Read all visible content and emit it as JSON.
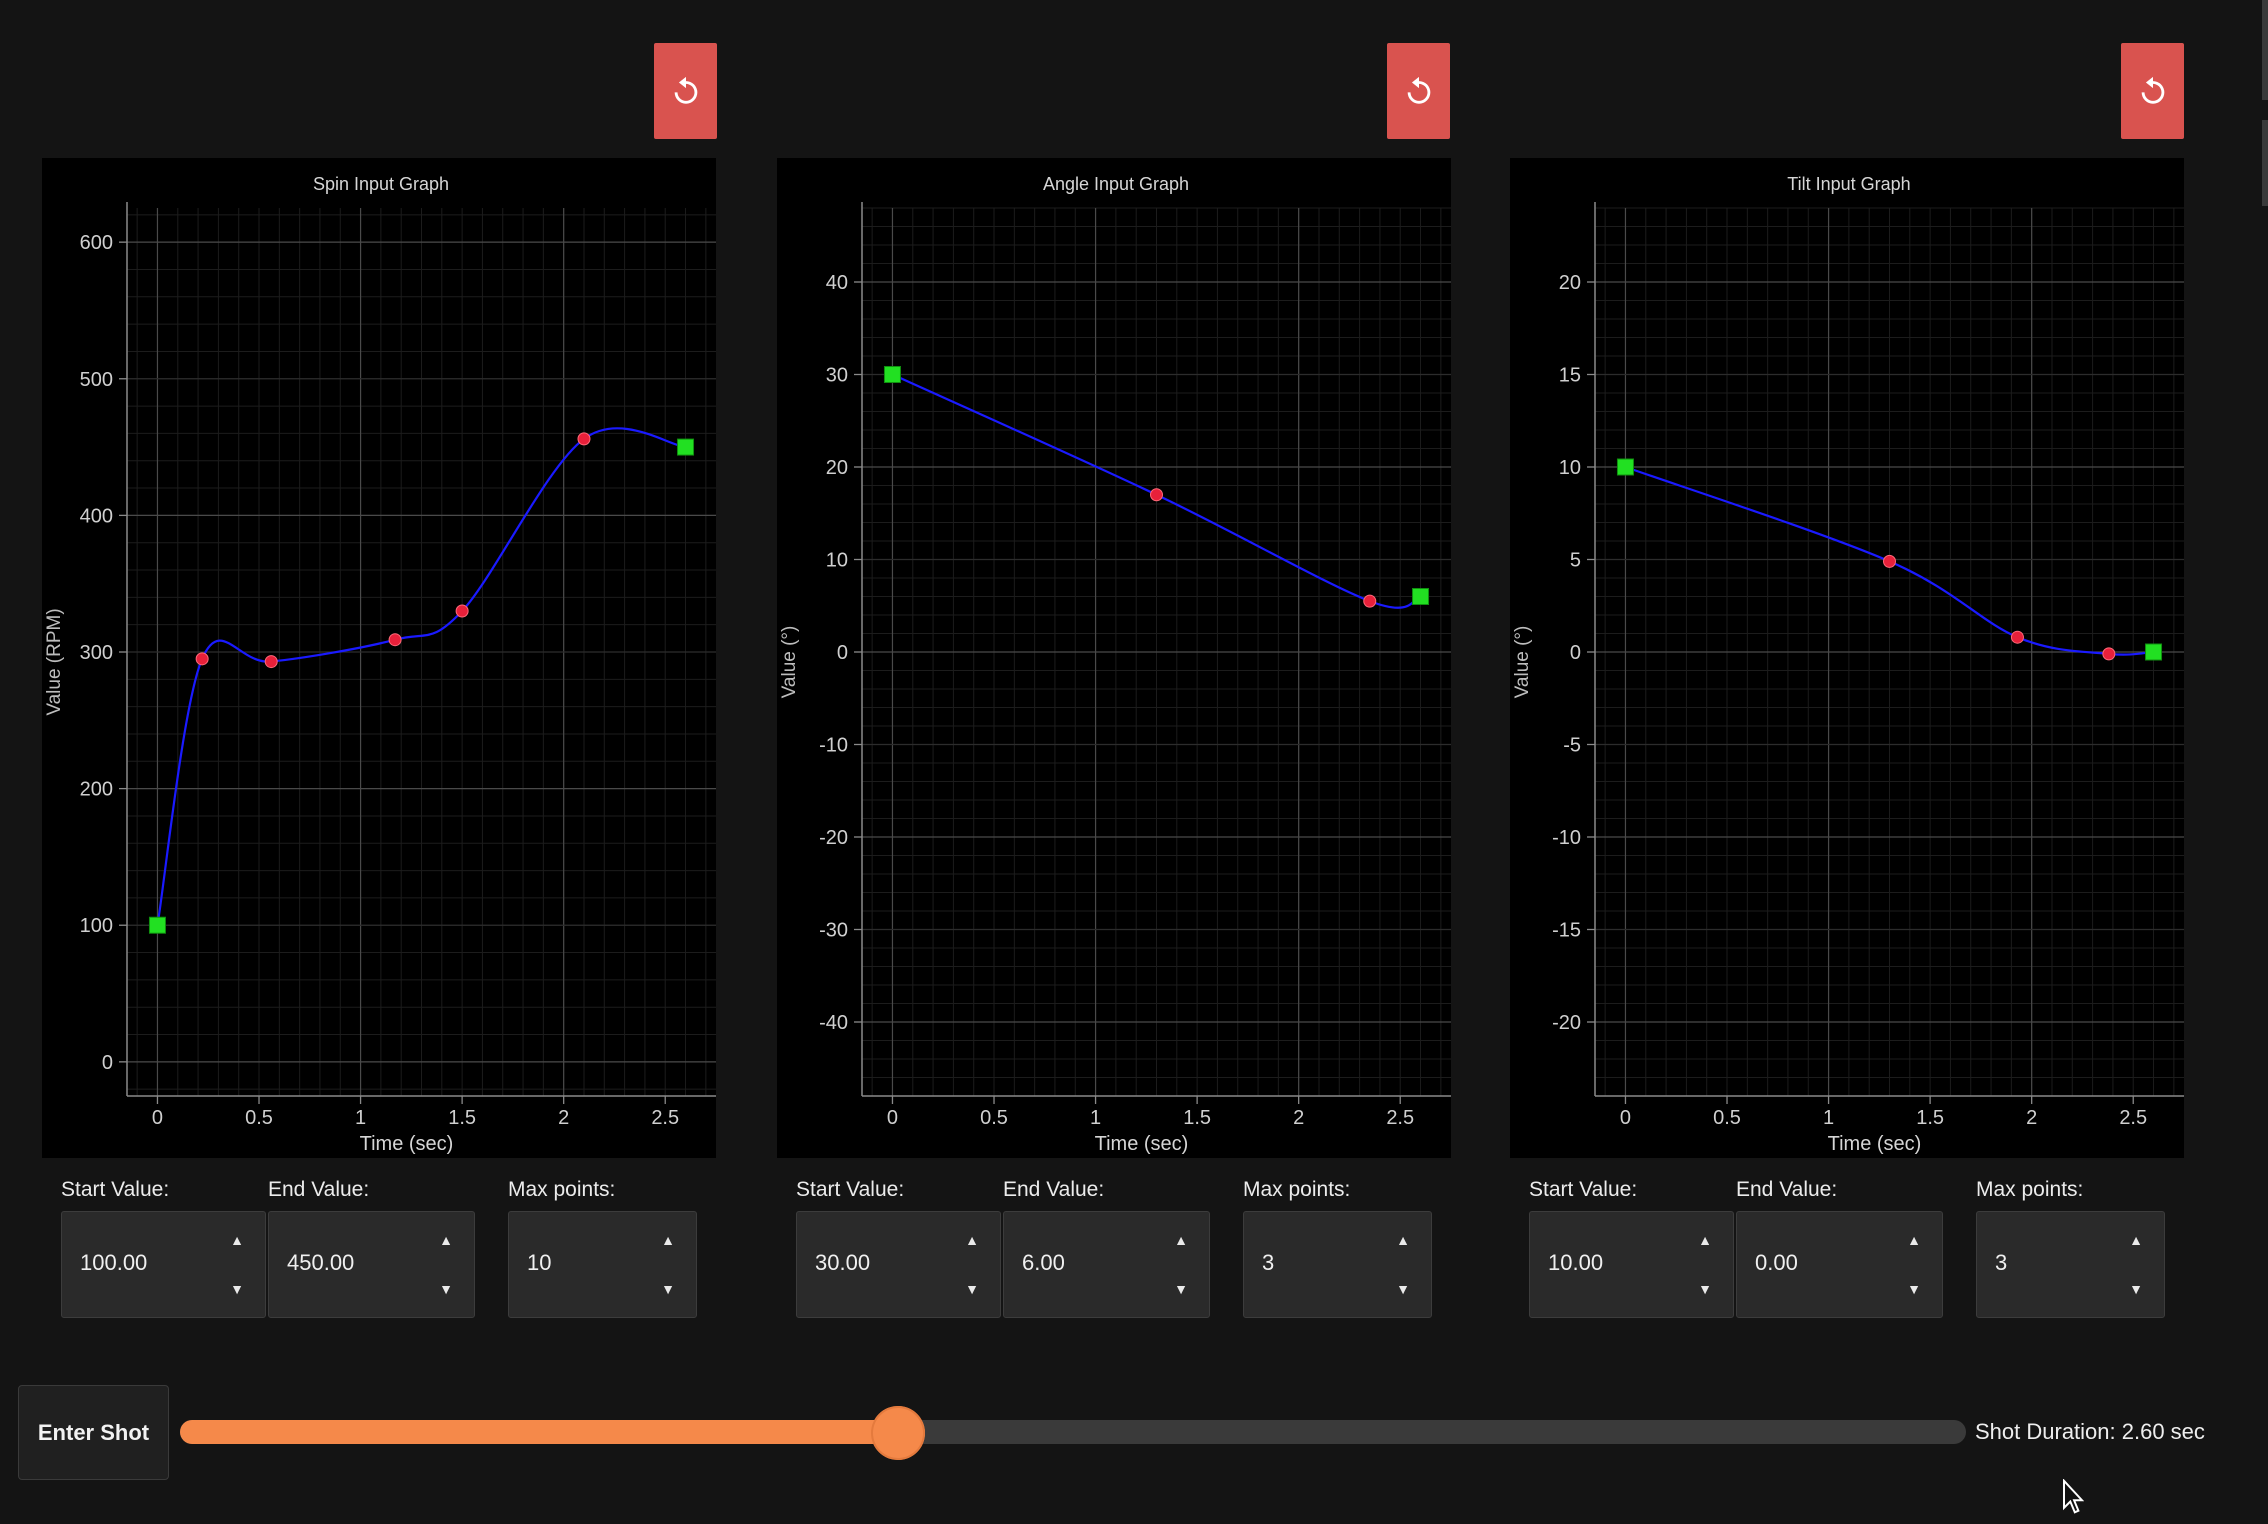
{
  "graphs": [
    {
      "id": "spin",
      "title": "Spin Input Graph",
      "xlabel": "Time (sec)",
      "ylabel": "Value (RPM)",
      "start_label": "Start Value:",
      "start_value": "100.00",
      "end_label": "End Value:",
      "end_value": "450.00",
      "max_label": "Max points:",
      "max_value": "10"
    },
    {
      "id": "angle",
      "title": "Angle Input Graph",
      "xlabel": "Time (sec)",
      "ylabel": "Value (°)",
      "start_label": "Start Value:",
      "start_value": "30.00",
      "end_label": "End Value:",
      "end_value": "6.00",
      "max_label": "Max points:",
      "max_value": "3"
    },
    {
      "id": "tilt",
      "title": "Tilt Input Graph",
      "xlabel": "Time (sec)",
      "ylabel": "Value (°)",
      "start_label": "Start Value:",
      "start_value": "10.00",
      "end_label": "End Value:",
      "end_value": "0.00",
      "max_label": "Max points:",
      "max_value": "3"
    }
  ],
  "enter_shot_label": "Enter Shot",
  "shot_duration_text": "Shot Duration: 2.60 sec",
  "slider_fraction": 0.402,
  "colors": {
    "accent": "#f5894a",
    "reset": "#d9534f",
    "curve": "#1a1aff",
    "control_point": "#e8203a",
    "endpoint": "#22e022"
  },
  "icons": {
    "reset": "reset-icon"
  },
  "chart_data": [
    {
      "type": "line",
      "title": "Spin Input Graph",
      "xlabel": "Time (sec)",
      "ylabel": "Value (RPM)",
      "xlim": [
        -0.15,
        2.75
      ],
      "ylim": [
        -25,
        625
      ],
      "xticks": [
        0,
        0.5,
        1,
        1.5,
        2,
        2.5
      ],
      "yticks": [
        0,
        100,
        200,
        300,
        400,
        500,
        600
      ],
      "grid": true,
      "points": [
        [
          0,
          100
        ],
        [
          0.22,
          295
        ],
        [
          0.56,
          293
        ],
        [
          1.17,
          309
        ],
        [
          1.5,
          330
        ],
        [
          2.1,
          456
        ],
        [
          2.6,
          450
        ]
      ]
    },
    {
      "type": "line",
      "title": "Angle Input Graph",
      "xlabel": "Time (sec)",
      "ylabel": "Value (°)",
      "xlim": [
        -0.15,
        2.75
      ],
      "ylim": [
        -48,
        48
      ],
      "xticks": [
        0,
        0.5,
        1,
        1.5,
        2,
        2.5
      ],
      "yticks": [
        -40,
        -30,
        -20,
        -10,
        0,
        10,
        20,
        30,
        40
      ],
      "grid": true,
      "points": [
        [
          0,
          30
        ],
        [
          1.3,
          17
        ],
        [
          2.35,
          5.5
        ],
        [
          2.6,
          6
        ]
      ]
    },
    {
      "type": "line",
      "title": "Tilt Input Graph",
      "xlabel": "Time (sec)",
      "ylabel": "Value (°)",
      "xlim": [
        -0.15,
        2.75
      ],
      "ylim": [
        -24,
        24
      ],
      "xticks": [
        0,
        0.5,
        1,
        1.5,
        2,
        2.5
      ],
      "yticks": [
        -20,
        -15,
        -10,
        -5,
        0,
        5,
        10,
        15,
        20
      ],
      "grid": true,
      "points": [
        [
          0,
          10
        ],
        [
          1.3,
          4.9
        ],
        [
          1.93,
          0.8
        ],
        [
          2.38,
          -0.1
        ],
        [
          2.6,
          0
        ]
      ]
    }
  ]
}
